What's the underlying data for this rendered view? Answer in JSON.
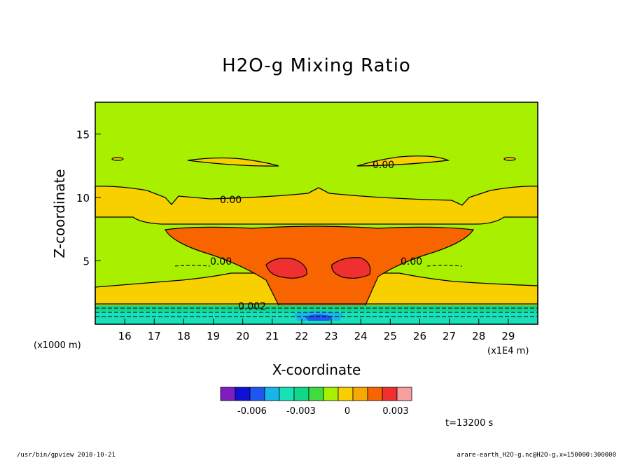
{
  "chart_data": {
    "type": "contour",
    "title": "H2O-g Mixing Ratio",
    "xlabel": "X-coordinate",
    "ylabel": "Z-coordinate",
    "x_unit_label": "(x1E4 m)",
    "y_unit_label": "(x1000 m)",
    "x_ticks": [
      "16",
      "17",
      "18",
      "19",
      "20",
      "21",
      "22",
      "23",
      "24",
      "25",
      "26",
      "27",
      "28",
      "29"
    ],
    "y_ticks": [
      "5",
      "10",
      "15"
    ],
    "xlim": [
      15,
      30
    ],
    "ylim": [
      0,
      17.5
    ],
    "contour_labels": [
      "0.00",
      "0.00",
      "0.00",
      "0.00",
      "0.002"
    ],
    "colorbar": {
      "colors": [
        "#7d1fbf",
        "#1010d6",
        "#1f55f0",
        "#17b5ea",
        "#18e0b8",
        "#10d88a",
        "#3fdc3f",
        "#a8f000",
        "#f8d000",
        "#f8a800",
        "#f86400",
        "#f03030",
        "#f8a0a0"
      ],
      "labels": [
        "-0.006",
        "-0.003",
        "0",
        "0.003"
      ]
    },
    "time_label": "t=13200 s"
  },
  "footer": {
    "left": "/usr/bin/gpview   2010-10-21",
    "right": "arare-earth_H2O-g.nc@H2O-g,x=150000:300000"
  }
}
